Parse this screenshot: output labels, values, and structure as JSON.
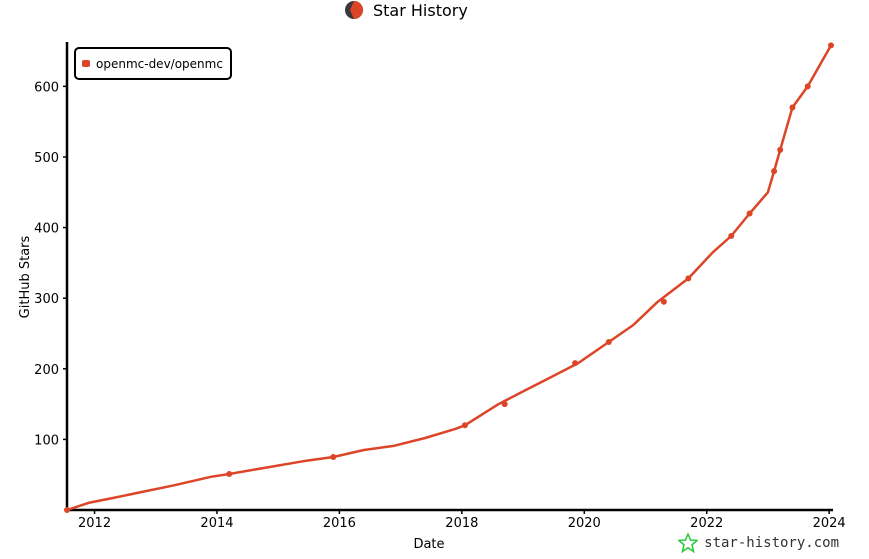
{
  "header": {
    "title": "Star History"
  },
  "watermark": {
    "text": "star-history.com"
  },
  "colors": {
    "series": "#dd4528",
    "axis": "#000000",
    "logo_dark": "#3a3a3a",
    "logo_red": "#dd4528",
    "watermark_icon": "#2ecc40"
  },
  "chart_data": {
    "type": "line",
    "title": "Star History",
    "xlabel": "Date",
    "ylabel": "GitHub Stars",
    "x_ticks": [
      "2012",
      "2014",
      "2016",
      "2018",
      "2020",
      "2022",
      "2024"
    ],
    "y_ticks": [
      "100",
      "200",
      "300",
      "400",
      "500",
      "600"
    ],
    "xlim": [
      2011.55,
      2024.03
    ],
    "ylim": [
      0,
      660
    ],
    "grid": false,
    "legend_position": "top-left",
    "series": [
      {
        "name": "openmc-dev/openmc",
        "points": [
          [
            2011.55,
            0
          ],
          [
            2011.9,
            10
          ],
          [
            2012.3,
            17
          ],
          [
            2012.8,
            26
          ],
          [
            2013.3,
            35
          ],
          [
            2013.9,
            47
          ],
          [
            2014.2,
            51
          ],
          [
            2014.8,
            60
          ],
          [
            2015.4,
            69
          ],
          [
            2015.9,
            75
          ],
          [
            2016.4,
            85
          ],
          [
            2016.9,
            91
          ],
          [
            2017.4,
            102
          ],
          [
            2017.9,
            115
          ],
          [
            2018.05,
            120
          ],
          [
            2018.6,
            150
          ],
          [
            2019.0,
            168
          ],
          [
            2019.5,
            190
          ],
          [
            2019.9,
            208
          ],
          [
            2020.4,
            238
          ],
          [
            2020.8,
            262
          ],
          [
            2021.2,
            295
          ],
          [
            2021.7,
            328
          ],
          [
            2022.1,
            365
          ],
          [
            2022.4,
            388
          ],
          [
            2022.7,
            420
          ],
          [
            2023.0,
            450
          ],
          [
            2023.1,
            480
          ],
          [
            2023.2,
            510
          ],
          [
            2023.4,
            570
          ],
          [
            2023.65,
            600
          ],
          [
            2024.03,
            658
          ]
        ]
      }
    ],
    "markers": [
      [
        2011.55,
        0
      ],
      [
        2014.2,
        51
      ],
      [
        2015.9,
        75
      ],
      [
        2018.05,
        120
      ],
      [
        2018.7,
        150
      ],
      [
        2019.85,
        208
      ],
      [
        2020.4,
        238
      ],
      [
        2021.3,
        295
      ],
      [
        2021.7,
        328
      ],
      [
        2022.4,
        388
      ],
      [
        2022.7,
        420
      ],
      [
        2023.1,
        480
      ],
      [
        2023.2,
        510
      ],
      [
        2023.4,
        570
      ],
      [
        2023.65,
        600
      ],
      [
        2024.03,
        658
      ]
    ]
  }
}
